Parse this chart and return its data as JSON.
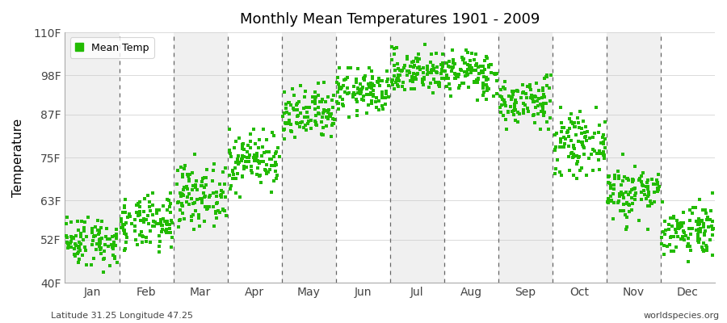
{
  "title": "Monthly Mean Temperatures 1901 - 2009",
  "ylabel": "Temperature",
  "ytick_labels": [
    "40F",
    "52F",
    "63F",
    "75F",
    "87F",
    "98F",
    "110F"
  ],
  "ytick_values": [
    40,
    52,
    63,
    75,
    87,
    98,
    110
  ],
  "ylim": [
    40,
    110
  ],
  "month_labels": [
    "Jan",
    "Feb",
    "Mar",
    "Apr",
    "May",
    "Jun",
    "Jul",
    "Aug",
    "Sep",
    "Oct",
    "Nov",
    "Dec"
  ],
  "legend_label": "Mean Temp",
  "marker_color": "#22bb00",
  "marker_size": 5,
  "bg_color": "#ffffff",
  "footer_left": "Latitude 31.25 Longitude 47.25",
  "footer_right": "worldspecies.org",
  "n_years": 109,
  "monthly_mean_F": [
    51.8,
    56.3,
    64.5,
    74.5,
    86.5,
    93.5,
    99.0,
    98.5,
    90.5,
    78.8,
    65.4,
    55.0
  ],
  "monthly_std_F": [
    3.5,
    3.8,
    4.2,
    4.0,
    3.8,
    3.2,
    3.0,
    3.2,
    3.5,
    4.0,
    4.0,
    3.8
  ],
  "monthly_min_F": [
    43,
    46,
    54,
    64,
    77,
    86,
    92,
    91,
    83,
    69,
    55,
    46
  ],
  "monthly_max_F": [
    60,
    65,
    76,
    83,
    96,
    100,
    107,
    105,
    98,
    89,
    76,
    65
  ],
  "band_colors_alt": [
    "#f0f0f0",
    "#ffffff"
  ]
}
